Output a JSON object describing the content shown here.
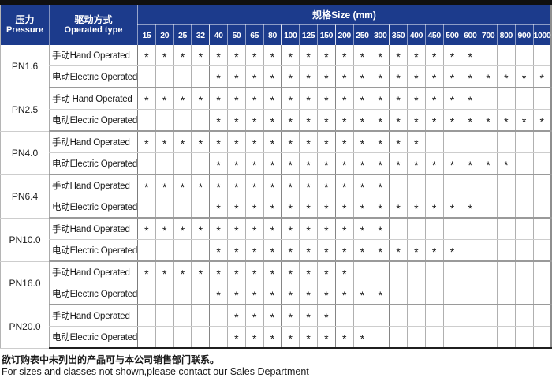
{
  "header": {
    "pressure": {
      "zh": "压力",
      "en": "Pressure"
    },
    "operated": {
      "zh": "驱动方式",
      "en": "Operated type"
    },
    "size_group_label": "规格Size (mm)",
    "sizes": [
      "15",
      "20",
      "25",
      "32",
      "40",
      "50",
      "65",
      "80",
      "100",
      "125",
      "150",
      "200",
      "250",
      "300",
      "350",
      "400",
      "450",
      "500",
      "600",
      "700",
      "800",
      "900",
      "1000"
    ]
  },
  "table": {
    "availability_mark": "*",
    "groups": [
      {
        "pressure": "PN1.6",
        "rows": [
          {
            "label": "手动Hand Operated",
            "marks": [
              1,
              1,
              1,
              1,
              1,
              1,
              1,
              1,
              1,
              1,
              1,
              1,
              1,
              1,
              1,
              1,
              1,
              1,
              1,
              0,
              0,
              0,
              0
            ]
          },
          {
            "label": "电动Electric Operated",
            "marks": [
              0,
              0,
              0,
              0,
              1,
              1,
              1,
              1,
              1,
              1,
              1,
              1,
              1,
              1,
              1,
              1,
              1,
              1,
              1,
              1,
              1,
              1,
              1
            ]
          }
        ]
      },
      {
        "pressure": "PN2.5",
        "rows": [
          {
            "label": "手动 Hand Operated",
            "marks": [
              1,
              1,
              1,
              1,
              1,
              1,
              1,
              1,
              1,
              1,
              1,
              1,
              1,
              1,
              1,
              1,
              1,
              1,
              1,
              0,
              0,
              0,
              0
            ]
          },
          {
            "label": "电动Electric Operated",
            "marks": [
              0,
              0,
              0,
              0,
              1,
              1,
              1,
              1,
              1,
              1,
              1,
              1,
              1,
              1,
              1,
              1,
              1,
              1,
              1,
              1,
              1,
              1,
              1
            ]
          }
        ]
      },
      {
        "pressure": "PN4.0",
        "rows": [
          {
            "label": "手动Hand Operated",
            "marks": [
              1,
              1,
              1,
              1,
              1,
              1,
              1,
              1,
              1,
              1,
              1,
              1,
              1,
              1,
              1,
              1,
              0,
              0,
              0,
              0,
              0,
              0,
              0
            ]
          },
          {
            "label": "电动Electric Operated",
            "marks": [
              0,
              0,
              0,
              0,
              1,
              1,
              1,
              1,
              1,
              1,
              1,
              1,
              1,
              1,
              1,
              1,
              1,
              1,
              1,
              1,
              1,
              0,
              0
            ]
          }
        ]
      },
      {
        "pressure": "PN6.4",
        "rows": [
          {
            "label": "手动Hand Operated",
            "marks": [
              1,
              1,
              1,
              1,
              1,
              1,
              1,
              1,
              1,
              1,
              1,
              1,
              1,
              1,
              0,
              0,
              0,
              0,
              0,
              0,
              0,
              0,
              0
            ]
          },
          {
            "label": "电动Electric Operated",
            "marks": [
              0,
              0,
              0,
              0,
              1,
              1,
              1,
              1,
              1,
              1,
              1,
              1,
              1,
              1,
              1,
              1,
              1,
              1,
              1,
              0,
              0,
              0,
              0
            ]
          }
        ]
      },
      {
        "pressure": "PN10.0",
        "rows": [
          {
            "label": "手动Hand Operated",
            "marks": [
              1,
              1,
              1,
              1,
              1,
              1,
              1,
              1,
              1,
              1,
              1,
              1,
              1,
              1,
              0,
              0,
              0,
              0,
              0,
              0,
              0,
              0,
              0
            ]
          },
          {
            "label": "电动Electric Operated",
            "marks": [
              0,
              0,
              0,
              0,
              1,
              1,
              1,
              1,
              1,
              1,
              1,
              1,
              1,
              1,
              1,
              1,
              1,
              1,
              0,
              0,
              0,
              0,
              0
            ]
          }
        ]
      },
      {
        "pressure": "PN16.0",
        "rows": [
          {
            "label": "手动Hand Operated",
            "marks": [
              1,
              1,
              1,
              1,
              1,
              1,
              1,
              1,
              1,
              1,
              1,
              1,
              0,
              0,
              0,
              0,
              0,
              0,
              0,
              0,
              0,
              0,
              0
            ]
          },
          {
            "label": "电动Electric Operated",
            "marks": [
              0,
              0,
              0,
              0,
              1,
              1,
              1,
              1,
              1,
              1,
              1,
              1,
              1,
              1,
              0,
              0,
              0,
              0,
              0,
              0,
              0,
              0,
              0
            ]
          }
        ]
      },
      {
        "pressure": "PN20.0",
        "rows": [
          {
            "label": "手动Hand Operated",
            "marks": [
              0,
              0,
              0,
              0,
              0,
              1,
              1,
              1,
              1,
              1,
              1,
              0,
              0,
              0,
              0,
              0,
              0,
              0,
              0,
              0,
              0,
              0,
              0
            ]
          },
          {
            "label": "电动Electric Operated",
            "marks": [
              0,
              0,
              0,
              0,
              0,
              1,
              1,
              1,
              1,
              1,
              1,
              1,
              1,
              0,
              0,
              0,
              0,
              0,
              0,
              0,
              0,
              0,
              0
            ]
          }
        ]
      }
    ]
  },
  "footer": {
    "line_zh": "欲订购表中未列出的产品可与本公司销售部门联系。",
    "line_en": "For sizes and classes not shown,please contact our Sales Department"
  },
  "colors": {
    "header_background": "#1c3b8c",
    "header_text": "#ffffff",
    "top_bar": "#101010",
    "grid_line": "#b0b0b0",
    "group_separator": "#9a9a9a",
    "bottom_border": "#1f1f1f"
  }
}
